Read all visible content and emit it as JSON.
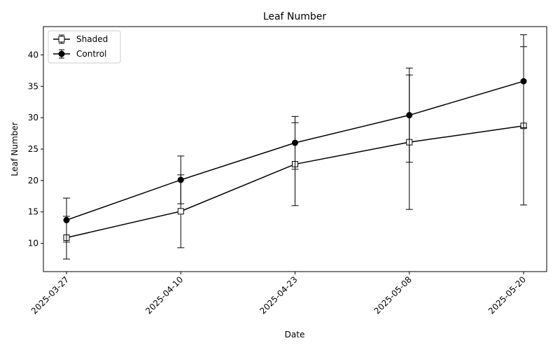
{
  "chart_data": {
    "type": "line",
    "title": "Leaf Number",
    "xlabel": "Date",
    "ylabel": "Leaf Number",
    "x": [
      "2025-03-27",
      "2025-04-10",
      "2025-04-23",
      "2025-05-08",
      "2025-05-20"
    ],
    "ylim": [
      5.5,
      44.5
    ],
    "yticks": [
      10,
      15,
      20,
      25,
      30,
      35,
      40
    ],
    "grid": false,
    "legend_position": "top-left",
    "series": [
      {
        "name": "Shaded",
        "marker": "square",
        "marker_fill": "#ffffff",
        "color": "#000000",
        "values": [
          10.9,
          15.1,
          22.6,
          26.1,
          28.7
        ],
        "err": [
          3.4,
          5.8,
          6.6,
          10.7,
          12.6
        ]
      },
      {
        "name": "Control",
        "marker": "circle",
        "marker_fill": "#000000",
        "color": "#000000",
        "values": [
          13.7,
          20.1,
          26.0,
          30.4,
          35.8
        ],
        "err": [
          3.5,
          3.8,
          4.2,
          7.5,
          7.4
        ]
      }
    ]
  }
}
